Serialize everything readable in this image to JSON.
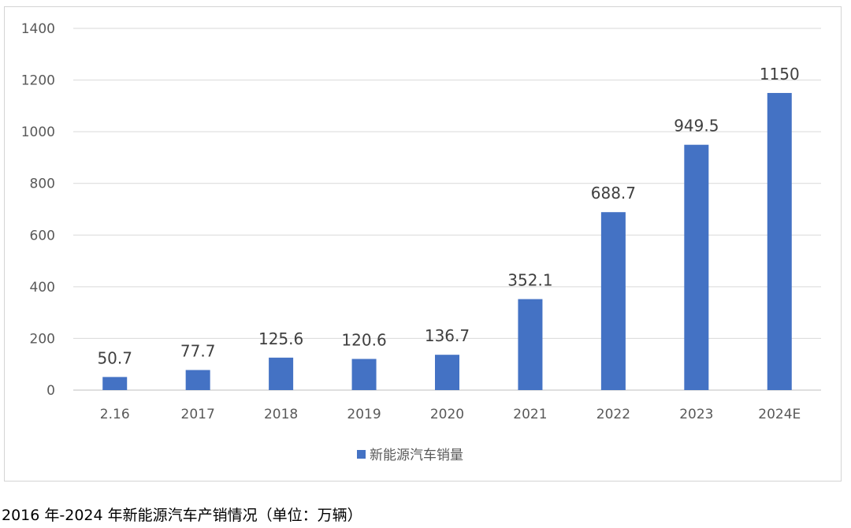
{
  "caption": "2016 年-2024 年新能源汽车产销情况（单位：万辆）",
  "chart_data": {
    "type": "bar",
    "categories": [
      "2.16",
      "2017",
      "2018",
      "2019",
      "2020",
      "2021",
      "2022",
      "2023",
      "2024E"
    ],
    "series": [
      {
        "name": "新能源汽车销量",
        "values": [
          50.7,
          77.7,
          125.6,
          120.6,
          136.7,
          352.1,
          688.7,
          949.5,
          1150
        ],
        "data_labels": [
          "50.7",
          "77.7",
          "125.6",
          "120.6",
          "136.7",
          "352.1",
          "688.7",
          "949.5",
          "1150"
        ],
        "color": "#4472C4"
      }
    ],
    "ylim": [
      0,
      1400
    ],
    "yticks": [
      "0",
      "200",
      "400",
      "600",
      "800",
      "1000",
      "1200",
      "1400"
    ],
    "grid": true,
    "legend_position": "bottom"
  }
}
